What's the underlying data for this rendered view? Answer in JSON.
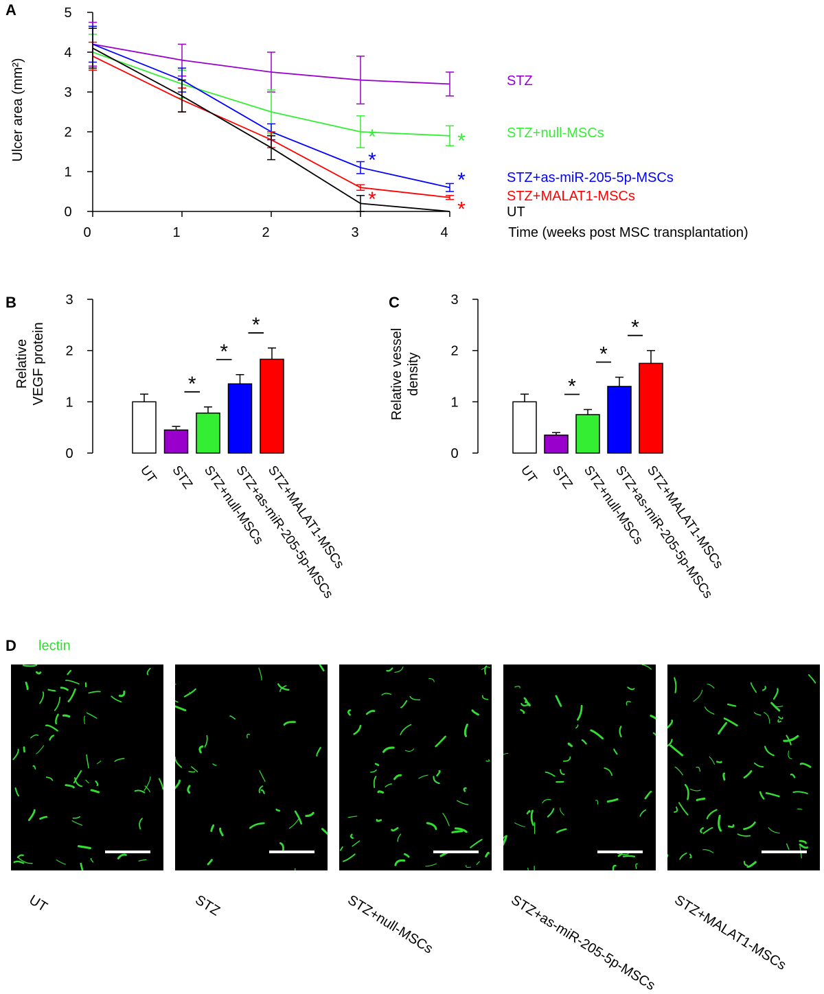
{
  "panel_letters": {
    "A": "A",
    "B": "B",
    "C": "C",
    "D": "D"
  },
  "chart_data": [
    {
      "panel": "A",
      "type": "line",
      "xlabel": "Time (weeks post MSC transplantation)",
      "ylabel": "Ulcer area (mm²)",
      "xlim": [
        0,
        4
      ],
      "ylim": [
        0,
        5
      ],
      "x": [
        0,
        1,
        2,
        3,
        4
      ],
      "xticks": [
        "0",
        "1",
        "2",
        "3",
        "4"
      ],
      "yticks": [
        "0",
        "1",
        "2",
        "3",
        "4",
        "5"
      ],
      "grid": false,
      "series": [
        {
          "name": "STZ",
          "color": "#9900cc",
          "values": [
            4.2,
            3.8,
            3.5,
            3.3,
            3.2
          ],
          "errors": [
            0.55,
            0.4,
            0.5,
            0.6,
            0.3
          ],
          "significance": [
            false,
            false,
            false,
            false,
            false
          ]
        },
        {
          "name": "STZ+null-MSCs",
          "color": "#33ee33",
          "values": [
            4.0,
            3.2,
            2.5,
            2.0,
            1.9
          ],
          "errors": [
            0.45,
            0.35,
            0.55,
            0.4,
            0.25
          ],
          "significance": [
            false,
            false,
            false,
            true,
            true
          ]
        },
        {
          "name": "STZ+as-miR-205-5p-MSCs",
          "color": "#0000ff",
          "values": [
            4.2,
            3.3,
            2.0,
            1.1,
            0.6
          ],
          "errors": [
            0.45,
            0.3,
            0.2,
            0.15,
            0.1
          ],
          "significance": [
            false,
            false,
            false,
            true,
            true
          ]
        },
        {
          "name": "STZ+MALAT1-MSCs",
          "color": "#ff0000",
          "values": [
            3.9,
            2.8,
            1.8,
            0.6,
            0.35
          ],
          "errors": [
            0.35,
            0.3,
            0.2,
            0.07,
            0.05
          ],
          "significance": [
            false,
            false,
            false,
            true,
            true
          ]
        },
        {
          "name": "UT",
          "color": "#000000",
          "values": [
            4.1,
            2.9,
            1.6,
            0.2,
            0.0
          ],
          "errors": [
            0.5,
            0.4,
            0.3,
            0.2,
            0.0
          ],
          "significance": [
            false,
            false,
            false,
            false,
            false
          ]
        }
      ],
      "significance_mark": "*"
    },
    {
      "panel": "B",
      "type": "bar",
      "ylabel": [
        "Relative",
        "VEGF protein"
      ],
      "ylim": [
        0,
        3
      ],
      "yticks": [
        "0",
        "1",
        "2",
        "3"
      ],
      "categories": [
        "UT",
        "STZ",
        "STZ+null-MSCs",
        "STZ+as-miR-205-5p-MSCs",
        "STZ+MALAT1-MSCs"
      ],
      "values": [
        1.0,
        0.45,
        0.78,
        1.35,
        1.83
      ],
      "errors": [
        0.15,
        0.07,
        0.12,
        0.18,
        0.22
      ],
      "colors": [
        "#ffffff",
        "#9900cc",
        "#33ee33",
        "#0000ff",
        "#ff0000"
      ],
      "comparisons": [
        {
          "from": 1,
          "to": 2,
          "label": "*"
        },
        {
          "from": 2,
          "to": 3,
          "label": "*"
        },
        {
          "from": 3,
          "to": 4,
          "label": "*"
        }
      ]
    },
    {
      "panel": "C",
      "type": "bar",
      "ylabel": [
        "Relative vessel",
        "density"
      ],
      "ylim": [
        0,
        3
      ],
      "yticks": [
        "0",
        "1",
        "2",
        "3"
      ],
      "categories": [
        "UT",
        "STZ",
        "STZ+null-MSCs",
        "STZ+as-miR-205-5p-MSCs",
        "STZ+MALAT1-MSCs"
      ],
      "values": [
        1.0,
        0.35,
        0.75,
        1.3,
        1.75
      ],
      "errors": [
        0.15,
        0.05,
        0.1,
        0.18,
        0.25
      ],
      "colors": [
        "#ffffff",
        "#9900cc",
        "#33ee33",
        "#0000ff",
        "#ff0000"
      ],
      "comparisons": [
        {
          "from": 1,
          "to": 2,
          "label": "*"
        },
        {
          "from": 2,
          "to": 3,
          "label": "*"
        },
        {
          "from": 3,
          "to": 4,
          "label": "*"
        }
      ]
    }
  ],
  "panel_d": {
    "stain_label": "lectin",
    "stain_color": "#33dd33",
    "images": [
      {
        "label": "UT"
      },
      {
        "label": "STZ"
      },
      {
        "label": "STZ+null-MSCs"
      },
      {
        "label": "STZ+as-miR-205-5p-MSCs"
      },
      {
        "label": "STZ+MALAT1-MSCs"
      }
    ]
  }
}
